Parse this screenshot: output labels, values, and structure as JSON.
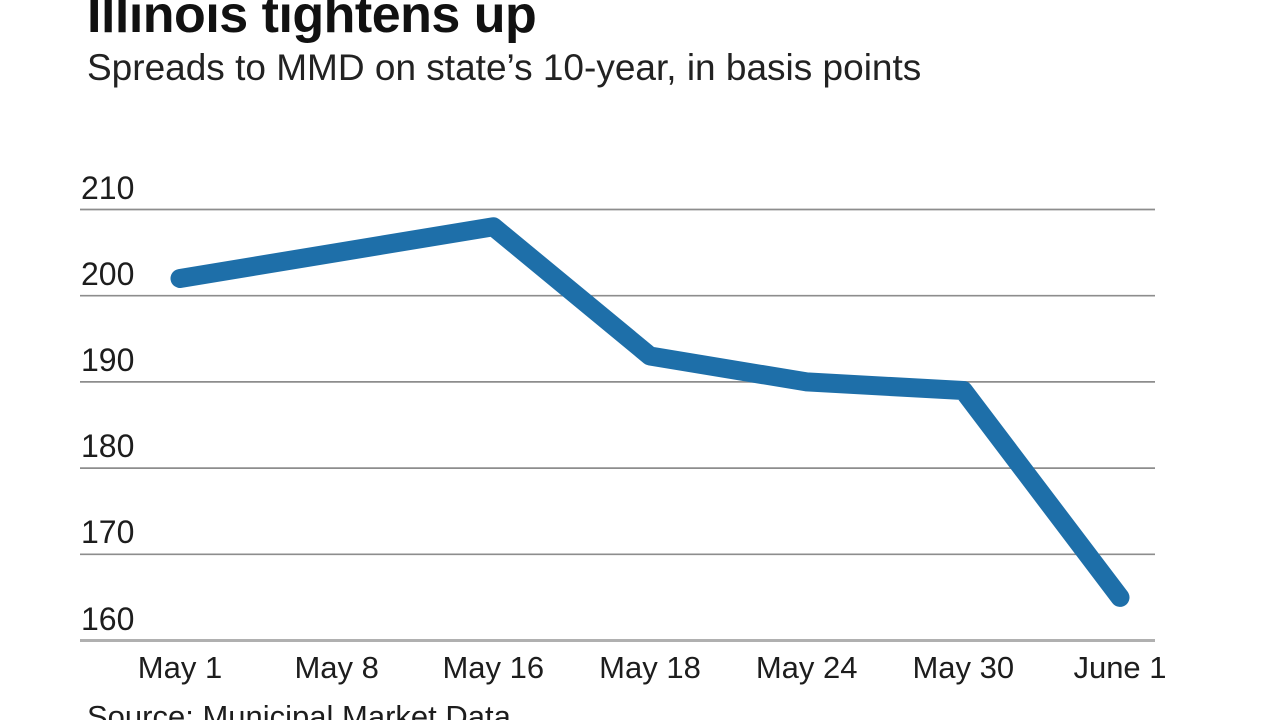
{
  "chart_data": {
    "type": "line",
    "title": "Illinois tightens up",
    "subtitle": "Spreads to MMD on state’s 10-year, in basis points",
    "source": "Source: Municipal Market Data",
    "categories": [
      "May 1",
      "May 8",
      "May 16",
      "May 18",
      "May 24",
      "May 30",
      "June 1"
    ],
    "series": [
      {
        "name": "Spread to MMD on Illinois 10-year (basis points)",
        "values": [
          202,
          205,
          208,
          193,
          190,
          189,
          165
        ]
      }
    ],
    "xlabel": "",
    "ylabel": "",
    "ylim": [
      160,
      215
    ],
    "yticks": [
      210,
      200,
      190,
      180,
      170,
      160
    ],
    "grid": "horizontal",
    "legend": "none",
    "colors": {
      "line": "#1e6fa9",
      "gridline": "#8d8d8d",
      "axis_line": "#b0b0b0",
      "text": "#1d1d1d",
      "background": "#ffffff"
    }
  }
}
